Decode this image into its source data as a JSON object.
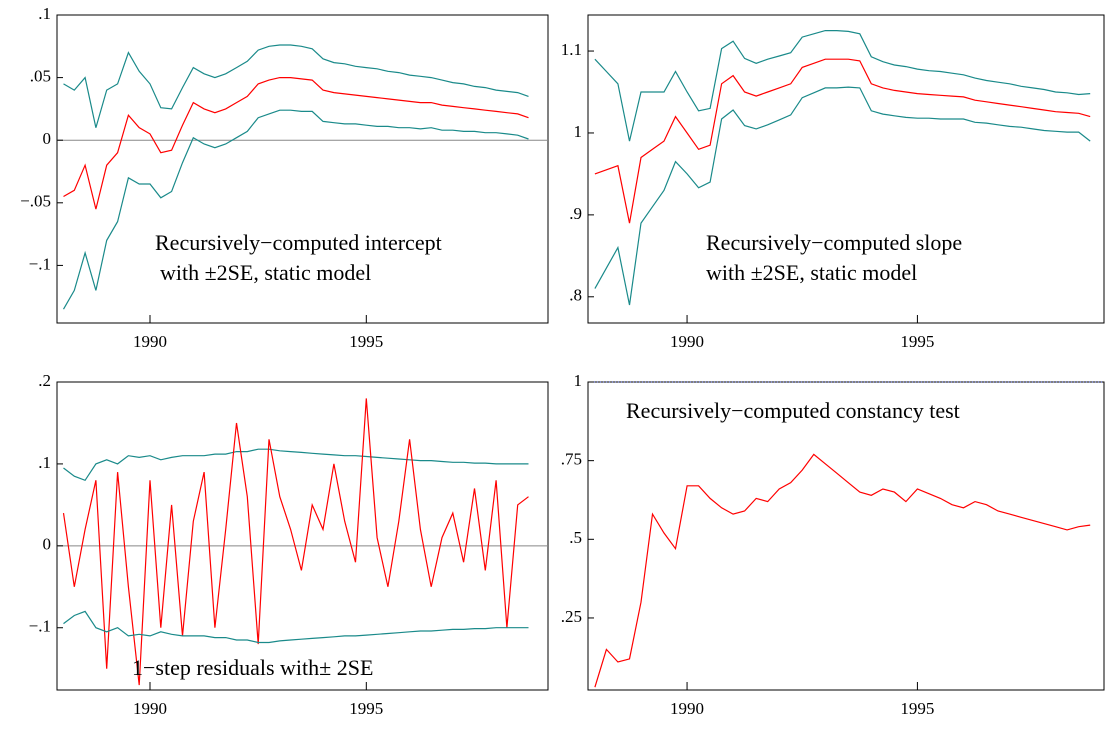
{
  "chart_data": [
    {
      "type": "line",
      "annotation": [
        "Recursively−computed intercept",
        "with ±2SE, static model"
      ],
      "x": [
        1988,
        1988.25,
        1988.5,
        1988.75,
        1989,
        1989.25,
        1989.5,
        1989.75,
        1990,
        1990.25,
        1990.5,
        1990.75,
        1991,
        1991.25,
        1991.5,
        1991.75,
        1992,
        1992.25,
        1992.5,
        1992.75,
        1993,
        1993.25,
        1993.5,
        1993.75,
        1994,
        1994.25,
        1994.5,
        1994.75,
        1995,
        1995.25,
        1995.5,
        1995.75,
        1996,
        1996.25,
        1996.5,
        1996.75,
        1997,
        1997.25,
        1997.5,
        1997.75,
        1998,
        1998.25,
        1998.5,
        1998.75
      ],
      "xlim": [
        1987.85,
        1999.2
      ],
      "xticks": [
        1990,
        1995
      ],
      "ylim": [
        -0.146,
        0.1
      ],
      "yticks": [
        {
          "value": -0.1,
          "label": "−.1"
        },
        {
          "value": -0.05,
          "label": "−.05"
        },
        0,
        {
          "value": 0.05,
          "label": ".05"
        },
        {
          "value": 0.1,
          "label": ".1"
        }
      ],
      "reference_line": 0,
      "reference_line_style": "solid",
      "series": [
        {
          "color": "#1a8a8a",
          "values": [
            0.045,
            0.04,
            0.05,
            0.01,
            0.04,
            0.045,
            0.07,
            0.055,
            0.045,
            0.026,
            0.025,
            0.042,
            0.058,
            0.053,
            0.05,
            0.053,
            0.058,
            0.063,
            0.072,
            0.075,
            0.076,
            0.076,
            0.075,
            0.073,
            0.065,
            0.062,
            0.061,
            0.059,
            0.058,
            0.057,
            0.055,
            0.054,
            0.052,
            0.051,
            0.05,
            0.048,
            0.046,
            0.045,
            0.043,
            0.042,
            0.04,
            0.039,
            0.038,
            0.035
          ]
        },
        {
          "color": "#ff0000",
          "values": [
            -0.045,
            -0.04,
            -0.02,
            -0.055,
            -0.02,
            -0.01,
            0.02,
            0.01,
            0.005,
            -0.01,
            -0.008,
            0.012,
            0.03,
            0.025,
            0.022,
            0.025,
            0.03,
            0.035,
            0.045,
            0.048,
            0.05,
            0.05,
            0.049,
            0.048,
            0.04,
            0.038,
            0.037,
            0.036,
            0.035,
            0.034,
            0.033,
            0.032,
            0.031,
            0.03,
            0.03,
            0.028,
            0.027,
            0.026,
            0.025,
            0.024,
            0.023,
            0.022,
            0.021,
            0.018
          ]
        },
        {
          "color": "#1a8a8a",
          "values": [
            -0.135,
            -0.12,
            -0.09,
            -0.12,
            -0.08,
            -0.065,
            -0.03,
            -0.035,
            -0.035,
            -0.046,
            -0.041,
            -0.018,
            0.002,
            -0.003,
            -0.006,
            -0.003,
            0.002,
            0.007,
            0.018,
            0.021,
            0.024,
            0.024,
            0.023,
            0.023,
            0.015,
            0.014,
            0.013,
            0.013,
            0.012,
            0.011,
            0.011,
            0.01,
            0.01,
            0.009,
            0.01,
            0.008,
            0.008,
            0.007,
            0.007,
            0.006,
            0.006,
            0.005,
            0.004,
            0.001
          ]
        }
      ]
    },
    {
      "type": "line",
      "annotation": [
        "Recursively−computed slope",
        "with ±2SE, static model"
      ],
      "x": [
        1988,
        1988.25,
        1988.5,
        1988.75,
        1989,
        1989.25,
        1989.5,
        1989.75,
        1990,
        1990.25,
        1990.5,
        1990.75,
        1991,
        1991.25,
        1991.5,
        1991.75,
        1992,
        1992.25,
        1992.5,
        1992.75,
        1993,
        1993.25,
        1993.5,
        1993.75,
        1994,
        1994.25,
        1994.5,
        1994.75,
        1995,
        1995.25,
        1995.5,
        1995.75,
        1996,
        1996.25,
        1996.5,
        1996.75,
        1997,
        1997.25,
        1997.5,
        1997.75,
        1998,
        1998.25,
        1998.5,
        1998.75
      ],
      "xlim": [
        1987.85,
        1999.05
      ],
      "xticks": [
        1990,
        1995
      ],
      "ylim": [
        0.768,
        1.144
      ],
      "yticks": [
        {
          "value": 0.8,
          "label": ".8"
        },
        {
          "value": 0.9,
          "label": ".9"
        },
        1,
        1.1
      ],
      "series": [
        {
          "color": "#1a8a8a",
          "values": [
            1.09,
            1.075,
            1.06,
            0.99,
            1.05,
            1.05,
            1.05,
            1.075,
            1.05,
            1.027,
            1.03,
            1.103,
            1.112,
            1.091,
            1.085,
            1.09,
            1.094,
            1.098,
            1.117,
            1.121,
            1.125,
            1.125,
            1.124,
            1.121,
            1.093,
            1.087,
            1.083,
            1.081,
            1.078,
            1.076,
            1.075,
            1.073,
            1.071,
            1.067,
            1.064,
            1.062,
            1.06,
            1.057,
            1.055,
            1.053,
            1.05,
            1.049,
            1.047,
            1.048
          ]
        },
        {
          "color": "#ff0000",
          "values": [
            0.95,
            0.955,
            0.96,
            0.89,
            0.97,
            0.98,
            0.99,
            1.02,
            1.0,
            0.98,
            0.985,
            1.06,
            1.07,
            1.05,
            1.045,
            1.05,
            1.055,
            1.06,
            1.08,
            1.085,
            1.09,
            1.09,
            1.09,
            1.088,
            1.06,
            1.055,
            1.052,
            1.05,
            1.048,
            1.047,
            1.046,
            1.045,
            1.044,
            1.04,
            1.038,
            1.036,
            1.034,
            1.032,
            1.03,
            1.028,
            1.026,
            1.025,
            1.024,
            1.02
          ]
        },
        {
          "color": "#1a8a8a",
          "values": [
            0.81,
            0.835,
            0.86,
            0.79,
            0.89,
            0.91,
            0.93,
            0.965,
            0.95,
            0.933,
            0.94,
            1.017,
            1.028,
            1.009,
            1.005,
            1.01,
            1.016,
            1.022,
            1.043,
            1.049,
            1.055,
            1.055,
            1.056,
            1.055,
            1.027,
            1.023,
            1.021,
            1.019,
            1.018,
            1.018,
            1.017,
            1.017,
            1.017,
            1.013,
            1.012,
            1.01,
            1.008,
            1.007,
            1.005,
            1.003,
            1.002,
            1.001,
            1.001,
            0.99
          ]
        }
      ]
    },
    {
      "type": "line",
      "annotation": [
        "1−step residuals with± 2SE"
      ],
      "x": [
        1988,
        1988.25,
        1988.5,
        1988.75,
        1989,
        1989.25,
        1989.5,
        1989.75,
        1990,
        1990.25,
        1990.5,
        1990.75,
        1991,
        1991.25,
        1991.5,
        1991.75,
        1992,
        1992.25,
        1992.5,
        1992.75,
        1993,
        1993.25,
        1993.5,
        1993.75,
        1994,
        1994.25,
        1994.5,
        1994.75,
        1995,
        1995.25,
        1995.5,
        1995.75,
        1996,
        1996.25,
        1996.5,
        1996.75,
        1997,
        1997.25,
        1997.5,
        1997.75,
        1998,
        1998.25,
        1998.5,
        1998.75
      ],
      "xlim": [
        1987.85,
        1999.2
      ],
      "xticks": [
        1990,
        1995
      ],
      "ylim": [
        -0.176,
        0.2
      ],
      "yticks": [
        {
          "value": -0.1,
          "label": "−.1"
        },
        0,
        {
          "value": 0.1,
          "label": ".1"
        },
        {
          "value": 0.2,
          "label": ".2"
        }
      ],
      "reference_line": 0,
      "reference_line_style": "solid",
      "series": [
        {
          "color": "#1a8a8a",
          "values": [
            0.095,
            0.085,
            0.08,
            0.1,
            0.105,
            0.1,
            0.11,
            0.108,
            0.11,
            0.105,
            0.108,
            0.11,
            0.11,
            0.11,
            0.112,
            0.112,
            0.115,
            0.115,
            0.118,
            0.118,
            0.116,
            0.115,
            0.114,
            0.113,
            0.112,
            0.111,
            0.11,
            0.11,
            0.109,
            0.108,
            0.107,
            0.106,
            0.105,
            0.104,
            0.104,
            0.103,
            0.102,
            0.102,
            0.101,
            0.101,
            0.1,
            0.1,
            0.1,
            0.1
          ]
        },
        {
          "color": "#ff0000",
          "values": [
            0.04,
            -0.05,
            0.02,
            0.08,
            -0.15,
            0.09,
            -0.05,
            -0.17,
            0.08,
            -0.1,
            0.05,
            -0.11,
            0.03,
            0.09,
            -0.1,
            0.02,
            0.15,
            0.06,
            -0.12,
            0.13,
            0.06,
            0.02,
            -0.03,
            0.05,
            0.02,
            0.1,
            0.03,
            -0.02,
            0.18,
            0.01,
            -0.05,
            0.03,
            0.13,
            0.02,
            -0.05,
            0.01,
            0.04,
            -0.02,
            0.07,
            -0.03,
            0.08,
            -0.1,
            0.05,
            0.06
          ]
        },
        {
          "color": "#1a8a8a",
          "values": [
            -0.095,
            -0.085,
            -0.08,
            -0.1,
            -0.105,
            -0.1,
            -0.11,
            -0.108,
            -0.11,
            -0.105,
            -0.108,
            -0.11,
            -0.11,
            -0.11,
            -0.112,
            -0.112,
            -0.115,
            -0.115,
            -0.118,
            -0.118,
            -0.116,
            -0.115,
            -0.114,
            -0.113,
            -0.112,
            -0.111,
            -0.11,
            -0.11,
            -0.109,
            -0.108,
            -0.107,
            -0.106,
            -0.105,
            -0.104,
            -0.104,
            -0.103,
            -0.102,
            -0.102,
            -0.101,
            -0.101,
            -0.1,
            -0.1,
            -0.1,
            -0.1
          ]
        }
      ]
    },
    {
      "type": "line",
      "annotation": [
        "Recursively−computed constancy test"
      ],
      "x": [
        1988,
        1988.25,
        1988.5,
        1988.75,
        1989,
        1989.25,
        1989.5,
        1989.75,
        1990,
        1990.25,
        1990.5,
        1990.75,
        1991,
        1991.25,
        1991.5,
        1991.75,
        1992,
        1992.25,
        1992.5,
        1992.75,
        1993,
        1993.25,
        1993.5,
        1993.75,
        1994,
        1994.25,
        1994.5,
        1994.75,
        1995,
        1995.25,
        1995.5,
        1995.75,
        1996,
        1996.25,
        1996.5,
        1996.75,
        1997,
        1997.25,
        1997.5,
        1997.75,
        1998,
        1998.25,
        1998.5,
        1998.75
      ],
      "xlim": [
        1987.85,
        1999.05
      ],
      "xticks": [
        1990,
        1995
      ],
      "ylim": [
        0.021,
        1
      ],
      "yticks": [
        {
          "value": 0.25,
          "label": ".25"
        },
        {
          "value": 0.5,
          "label": ".5"
        },
        {
          "value": 0.75,
          "label": ".75"
        },
        1
      ],
      "reference_line": 1,
      "reference_line_style": "dotted",
      "series": [
        {
          "color": "#ff0000",
          "values": [
            0.03,
            0.15,
            0.11,
            0.12,
            0.3,
            0.58,
            0.52,
            0.47,
            0.67,
            0.67,
            0.63,
            0.6,
            0.58,
            0.59,
            0.63,
            0.62,
            0.66,
            0.68,
            0.72,
            0.77,
            0.74,
            0.71,
            0.68,
            0.65,
            0.64,
            0.66,
            0.65,
            0.62,
            0.66,
            0.645,
            0.63,
            0.61,
            0.6,
            0.62,
            0.61,
            0.59,
            0.58,
            0.57,
            0.56,
            0.55,
            0.54,
            0.53,
            0.54,
            0.545
          ]
        }
      ]
    }
  ]
}
